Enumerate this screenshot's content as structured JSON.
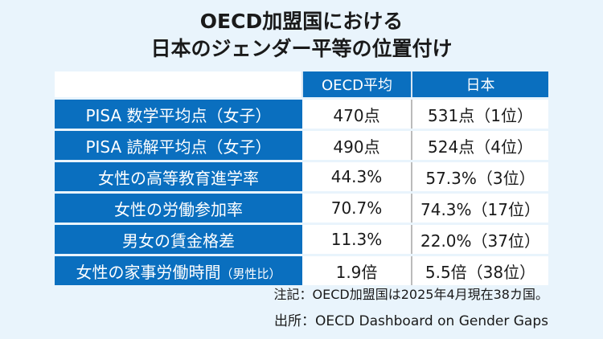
{
  "title": {
    "line1": "OECD加盟国における",
    "line2": "日本のジェンダー平等の位置付け"
  },
  "table": {
    "headers": [
      "",
      "OECD平均",
      "日本"
    ],
    "rows": [
      {
        "label": "PISA 数学平均点（女子）",
        "suffix": "",
        "oecd": "470点",
        "japan": "531点（1位）"
      },
      {
        "label": "PISA 読解平均点（女子）",
        "suffix": "",
        "oecd": "490点",
        "japan": "524点（4位）"
      },
      {
        "label": "女性の高等教育進学率",
        "suffix": "",
        "oecd": "44.3%",
        "japan": "57.3%（3位）"
      },
      {
        "label": "女性の労働参加率",
        "suffix": "",
        "oecd": "70.7%",
        "japan": "74.3%（17位）"
      },
      {
        "label": "男女の賃金格差",
        "suffix": "",
        "oecd": "11.3%",
        "japan": "22.0%（37位）"
      },
      {
        "label": "女性の家事労働時間",
        "suffix": "（男性比）",
        "oecd": "1.9倍",
        "japan": "5.5倍（38位）"
      }
    ]
  },
  "note": "注記：OECD加盟国は2025年4月現在38カ国。",
  "source": "出所：OECD Dashboard on Gender Gaps",
  "colors": {
    "accent": "#0a6fbf",
    "background": "#e9f4fc"
  }
}
